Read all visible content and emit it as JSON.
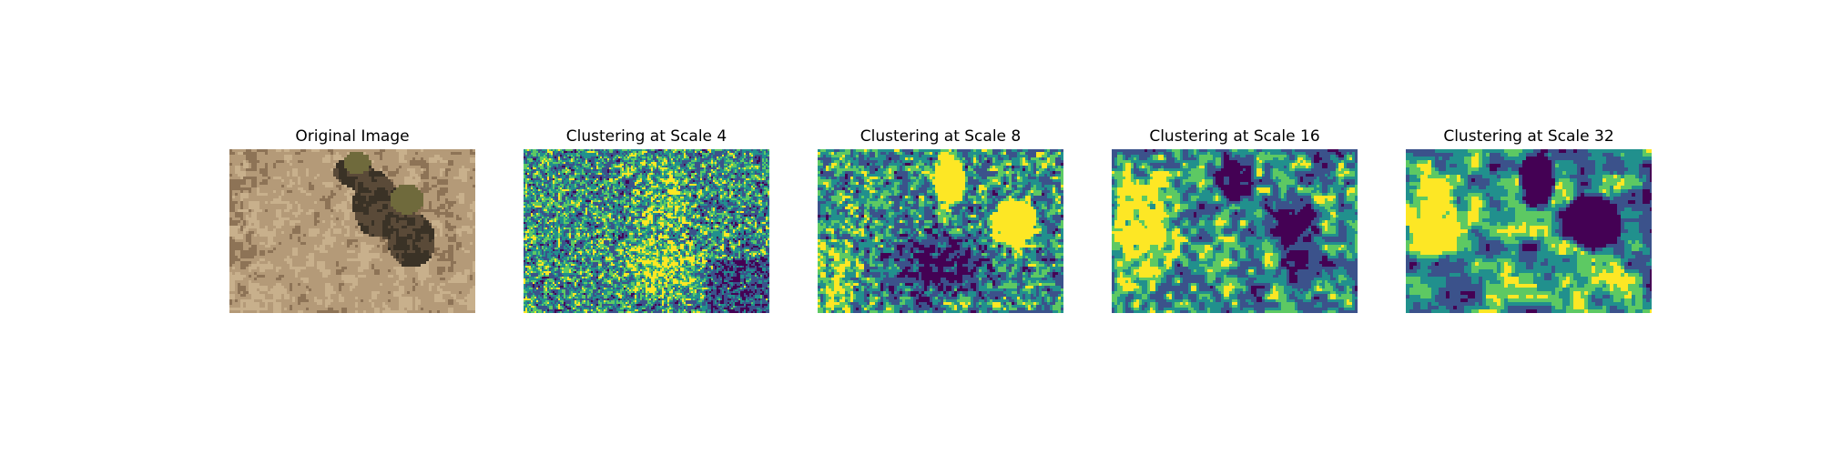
{
  "figure": {
    "panels": [
      {
        "title": "Original Image",
        "kind": "photo"
      },
      {
        "title": "Clustering at Scale 4",
        "kind": "cluster-map",
        "scale": 4
      },
      {
        "title": "Clustering at Scale 8",
        "kind": "cluster-map",
        "scale": 8
      },
      {
        "title": "Clustering at Scale 16",
        "kind": "cluster-map",
        "scale": 16
      },
      {
        "title": "Clustering at Scale 32",
        "kind": "cluster-map",
        "scale": 32
      }
    ],
    "colormap": [
      "#440154",
      "#3b528b",
      "#21908d",
      "#5dc963",
      "#fde725"
    ],
    "photo_palette": [
      "#b49a78",
      "#c8b08c",
      "#8d7356",
      "#5a4a38",
      "#6f6a3c",
      "#3a3226"
    ]
  }
}
